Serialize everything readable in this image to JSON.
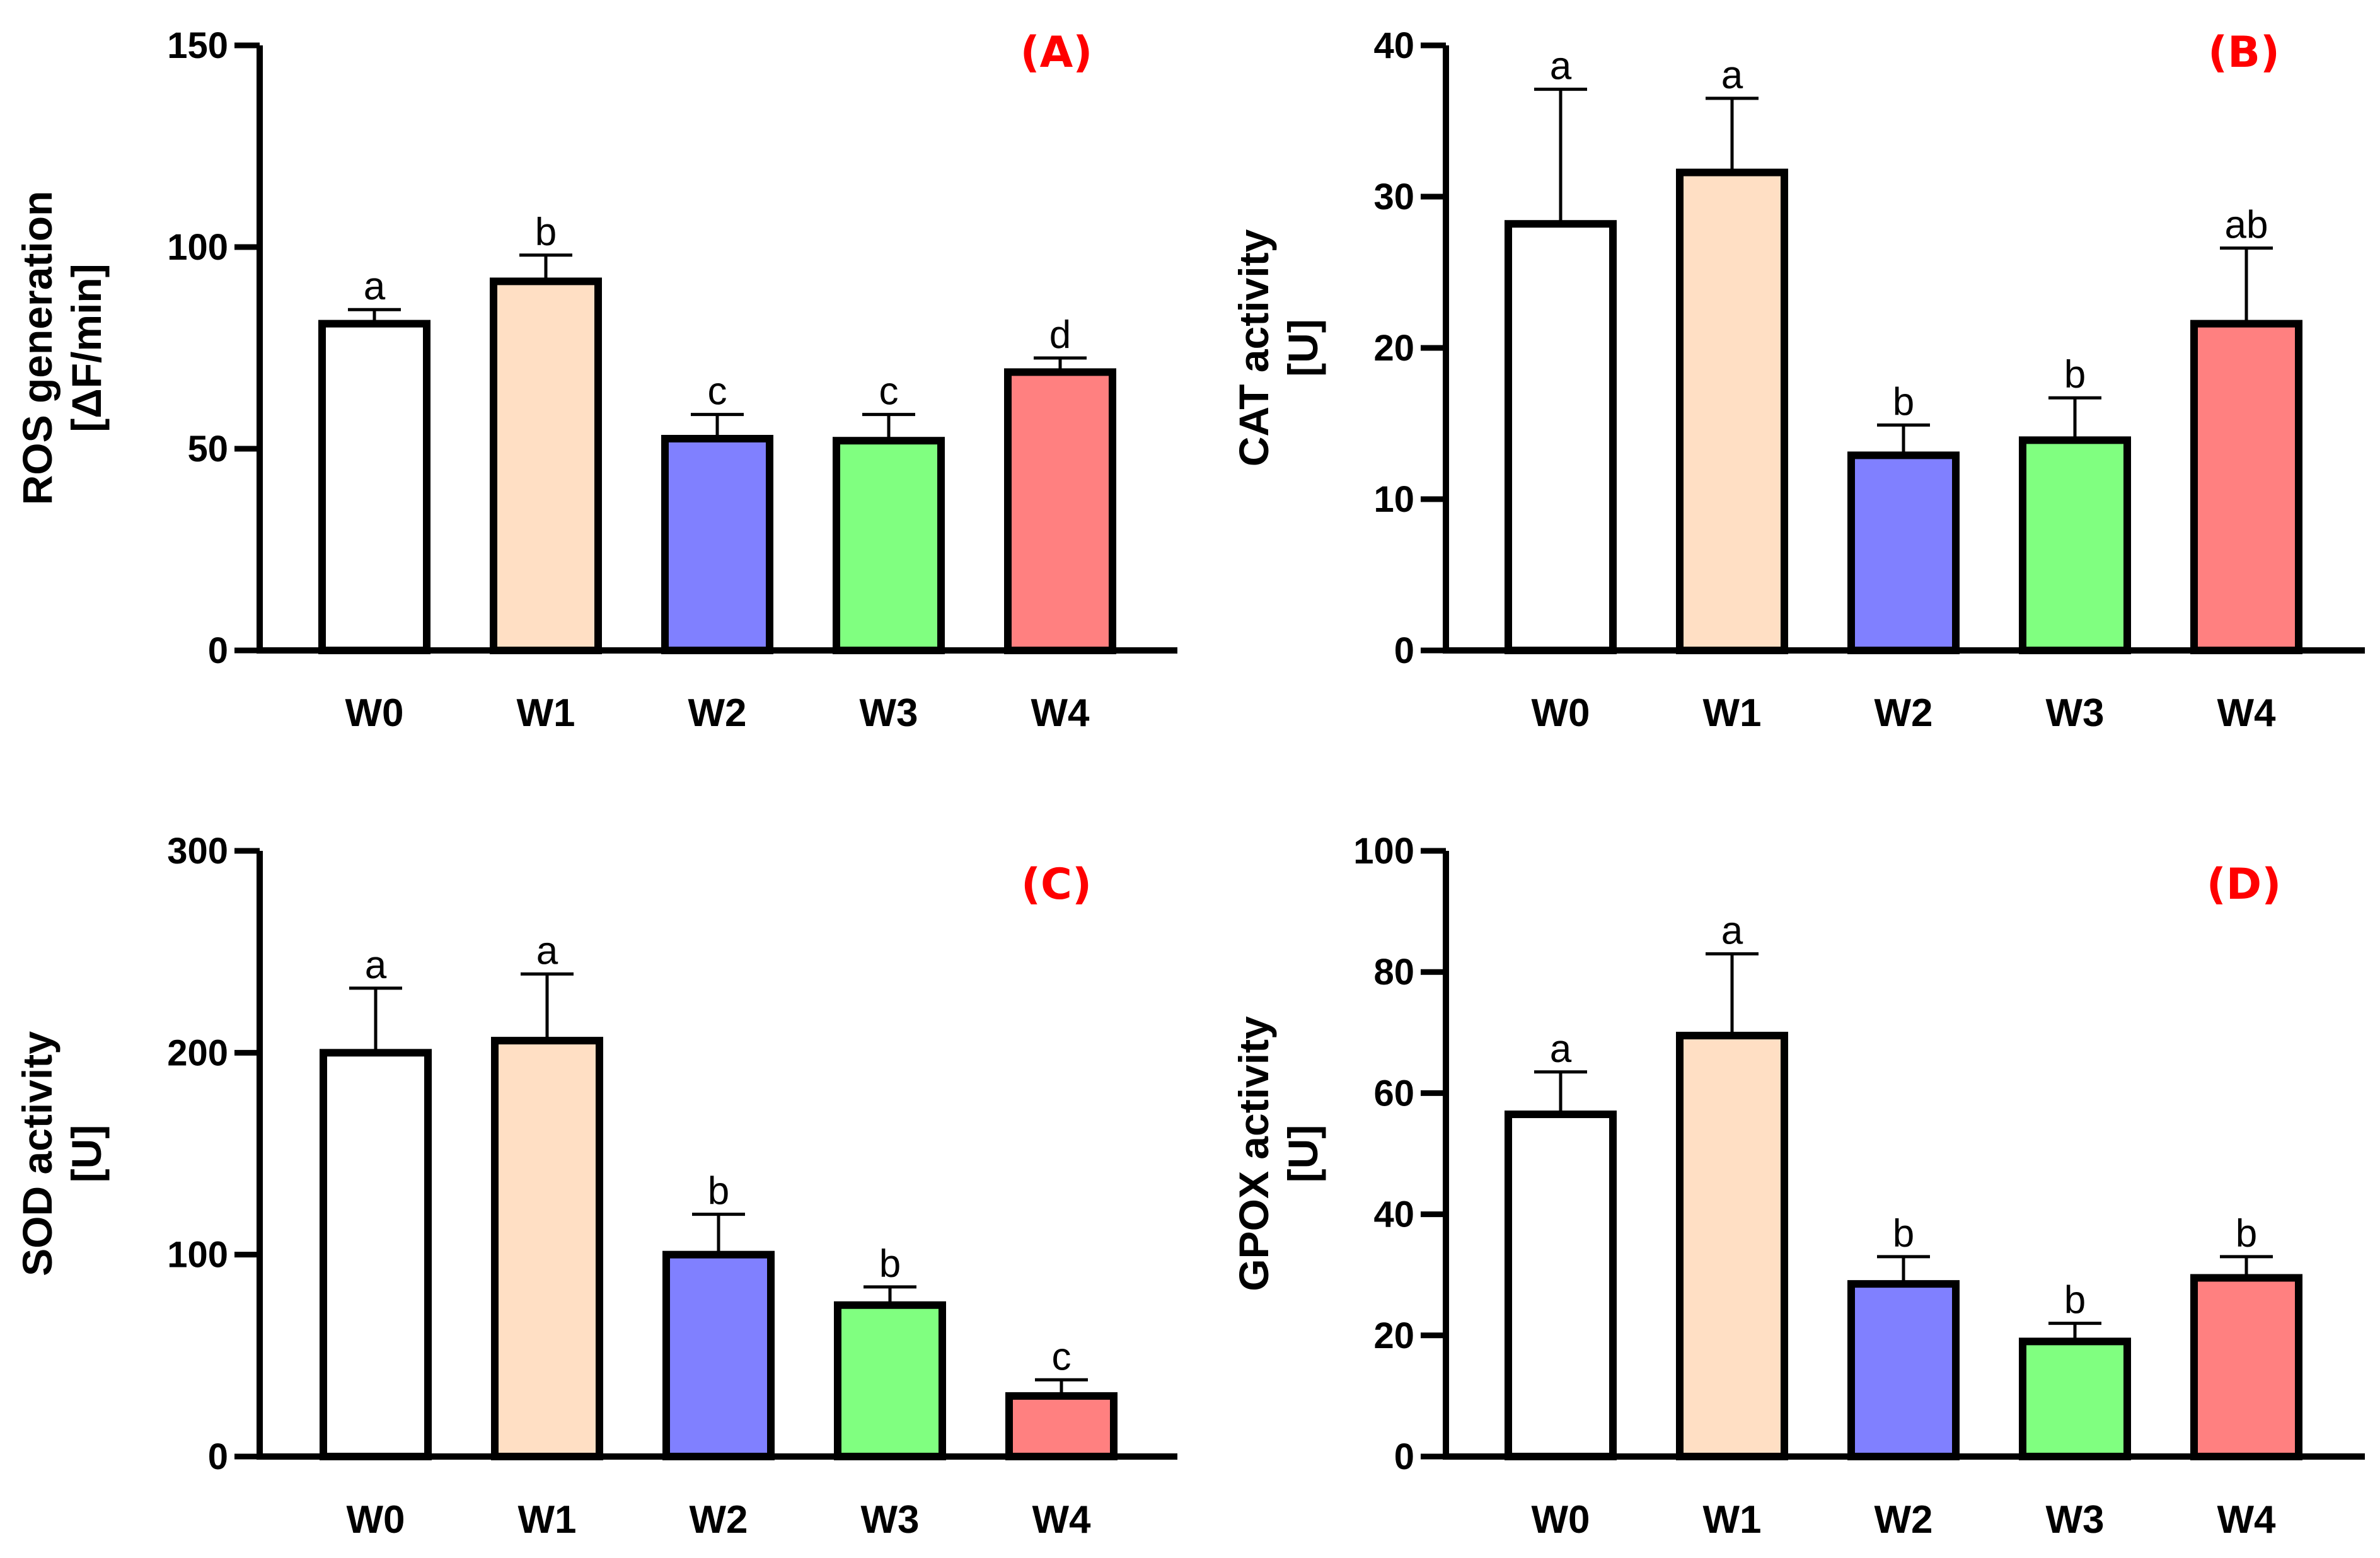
{
  "figure_title": "",
  "chart_data": [
    {
      "type": "bar",
      "panel_label": "(A)",
      "title": "",
      "xlabel": "",
      "ylabel_lines": [
        "ROS generation",
        "[ΔF/min]"
      ],
      "categories": [
        "W0",
        "W1",
        "W2",
        "W3",
        "W4"
      ],
      "values": [
        81,
        91.5,
        52.5,
        52,
        69
      ],
      "errors": [
        3.5,
        6.5,
        6,
        6.5,
        3.5
      ],
      "significance": [
        "a",
        "b",
        "c",
        "c",
        "d"
      ],
      "colors": [
        "#ffffff",
        "#ffdfc4",
        "#8080ff",
        "#80ff80",
        "#ff8080"
      ],
      "ylim": [
        0,
        150
      ],
      "yticks": [
        0,
        50,
        100,
        150
      ],
      "grid": false,
      "legend": "none"
    },
    {
      "type": "bar",
      "panel_label": "(B)",
      "title": "",
      "xlabel": "",
      "ylabel_lines": [
        "CAT activity",
        "[U]"
      ],
      "categories": [
        "W0",
        "W1",
        "W2",
        "W3",
        "W4"
      ],
      "values": [
        28.2,
        31.6,
        12.9,
        13.9,
        21.6
      ],
      "errors": [
        8.9,
        4.9,
        2,
        2.8,
        5
      ],
      "significance": [
        "a",
        "a",
        "b",
        "b",
        "ab"
      ],
      "colors": [
        "#ffffff",
        "#ffdfc4",
        "#8080ff",
        "#80ff80",
        "#ff8080"
      ],
      "ylim": [
        0,
        40
      ],
      "yticks": [
        0,
        10,
        20,
        30,
        40
      ],
      "grid": false,
      "legend": "none"
    },
    {
      "type": "bar",
      "panel_label": "(C)",
      "title": "",
      "xlabel": "",
      "ylabel_lines": [
        "SOD activity",
        "[U]"
      ],
      "categories": [
        "W0",
        "W1",
        "W2",
        "W3",
        "W4"
      ],
      "values": [
        200,
        206,
        100,
        75,
        30
      ],
      "errors": [
        32,
        33,
        20,
        9,
        8
      ],
      "significance": [
        "a",
        "a",
        "b",
        "b",
        "c"
      ],
      "colors": [
        "#ffffff",
        "#ffdfc4",
        "#8080ff",
        "#80ff80",
        "#ff8080"
      ],
      "ylim": [
        0,
        300
      ],
      "yticks": [
        0,
        100,
        200,
        300
      ],
      "grid": false,
      "legend": "none"
    },
    {
      "type": "bar",
      "panel_label": "(D)",
      "title": "",
      "xlabel": "",
      "ylabel_lines": [
        "GPOX activity",
        "[U]"
      ],
      "categories": [
        "W0",
        "W1",
        "W2",
        "W3",
        "W4"
      ],
      "values": [
        56.5,
        69.5,
        28.5,
        19,
        29.5
      ],
      "errors": [
        7,
        13.5,
        4.5,
        3,
        3.5
      ],
      "significance": [
        "a",
        "a",
        "b",
        "b",
        "b"
      ],
      "colors": [
        "#ffffff",
        "#ffdfc4",
        "#8080ff",
        "#80ff80",
        "#ff8080"
      ],
      "ylim": [
        0,
        100
      ],
      "yticks": [
        0,
        20,
        40,
        60,
        80,
        100
      ],
      "grid": false,
      "legend": "none"
    }
  ]
}
